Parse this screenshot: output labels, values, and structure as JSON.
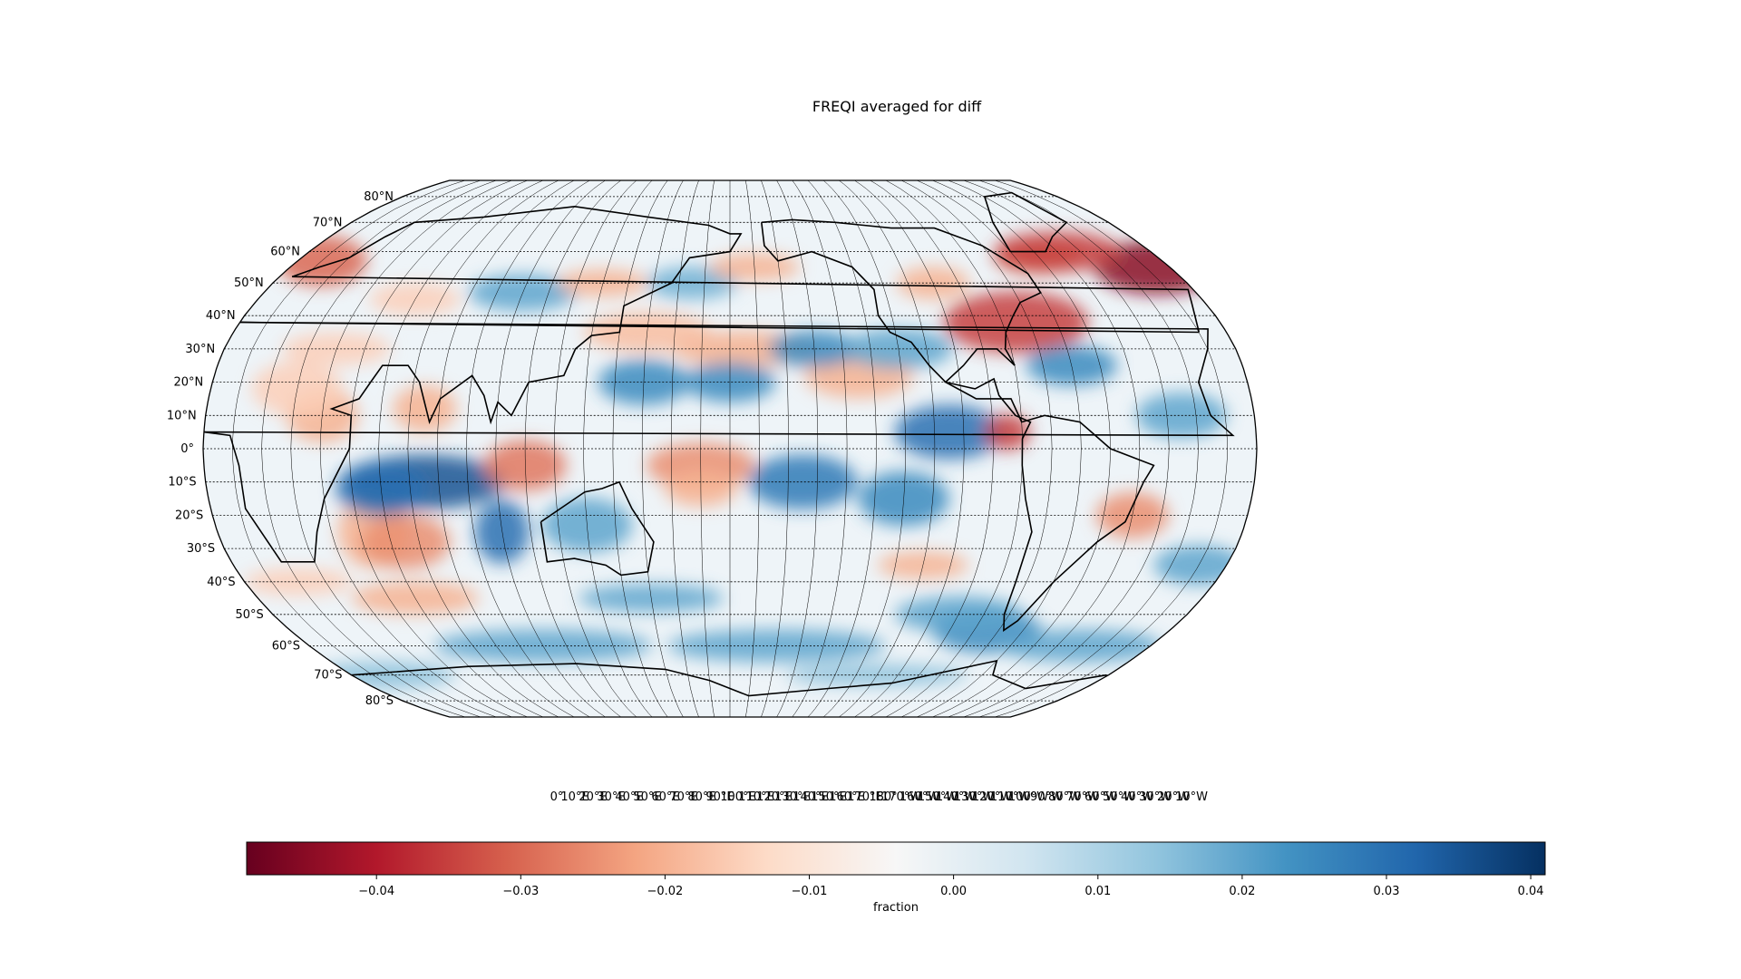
{
  "title": "FREQI averaged for diff",
  "map": {
    "projection": "Robinson",
    "central_longitude_east": 180,
    "gridlines": "dotted, every 10 degrees",
    "lat_labels": [
      "80°N",
      "70°N",
      "60°N",
      "50°N",
      "40°N",
      "30°N",
      "20°N",
      "10°N",
      "0°",
      "10°S",
      "20°S",
      "30°S",
      "40°S",
      "50°S",
      "60°S",
      "70°S",
      "80°S"
    ],
    "lon_labels": [
      "0°",
      "10°E",
      "20°E",
      "30°E",
      "40°E",
      "50°E",
      "60°E",
      "70°E",
      "80°E",
      "90°E",
      "100°E",
      "110°E",
      "120°E",
      "130°E",
      "140°E",
      "150°E",
      "160°E",
      "170°E",
      "180°",
      "170°W",
      "160°W",
      "150°W",
      "140°W",
      "130°W",
      "120°W",
      "110°W",
      "100°W",
      "90°W",
      "80°W",
      "70°W",
      "60°W",
      "50°W",
      "40°W",
      "30°W",
      "20°W",
      "10°W"
    ],
    "features": [
      "coastlines",
      "country borders",
      "US state borders"
    ],
    "field": {
      "name": "FREQI",
      "description": "difference field",
      "range": [
        -0.049,
        0.041
      ],
      "colormap": "RdBu",
      "notable_anomalies": [
        {
          "region": "Northwest Europe / British Isles",
          "sign": "negative",
          "approx_value": -0.045
        },
        {
          "region": "Eastern United States",
          "sign": "negative",
          "approx_value": -0.035
        },
        {
          "region": "Southern Greenland / Labrador Sea",
          "sign": "negative",
          "approx_value": -0.035
        },
        {
          "region": "Central Indian Ocean 10°S",
          "sign": "positive",
          "approx_value": 0.035
        },
        {
          "region": "Eastern tropical Pacific",
          "sign": "positive",
          "approx_value": 0.03
        },
        {
          "region": "Colombia",
          "sign": "negative",
          "approx_value": -0.035
        }
      ]
    }
  },
  "colorbar": {
    "label": "fraction",
    "ticks": [
      "−0.04",
      "−0.03",
      "−0.02",
      "−0.01",
      "0.00",
      "0.01",
      "0.02",
      "0.03",
      "0.04"
    ],
    "tick_values": [
      -0.04,
      -0.03,
      -0.02,
      -0.01,
      0.0,
      0.01,
      0.02,
      0.03,
      0.04
    ],
    "min": -0.049,
    "max": 0.041,
    "colors": [
      "#67001f",
      "#b2182b",
      "#d6604d",
      "#f4a582",
      "#fddbc7",
      "#f7f7f7",
      "#d1e5f0",
      "#92c5de",
      "#4393c3",
      "#2166ac",
      "#053061"
    ]
  }
}
